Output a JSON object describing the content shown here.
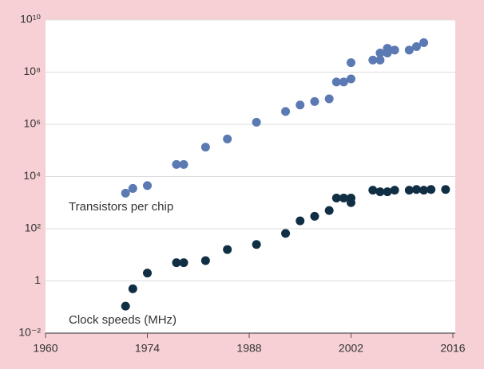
{
  "chart_data": {
    "type": "scatter",
    "log_y": true,
    "grid": true,
    "xlim": [
      1960,
      2016
    ],
    "xticks": [
      1960,
      1974,
      1988,
      2002,
      2016
    ],
    "ylim": [
      0.01,
      10000000000
    ],
    "yticks": [
      {
        "value": 0.01,
        "label": "10⁻²"
      },
      1,
      {
        "value": 100,
        "label": "10²"
      },
      {
        "value": 10000,
        "label": "10⁴"
      },
      {
        "value": 1000000,
        "label": "10⁶"
      },
      {
        "value": 100000000,
        "label": "10⁸"
      },
      {
        "value": 10000000000,
        "label": "10¹⁰"
      }
    ],
    "series": [
      {
        "name": "Transistors per chip",
        "color": "#5b79b2",
        "x": [
          1971,
          1972,
          1974,
          1978,
          1979,
          1982,
          1985,
          1989,
          1993,
          1995,
          1997,
          1999,
          2000,
          2001,
          2002,
          2002,
          2005,
          2006,
          2006,
          2007,
          2007,
          2008,
          2010,
          2011,
          2012
        ],
        "values": [
          2300,
          3500,
          4500,
          29000,
          29000,
          134000,
          275000,
          1200000,
          3100000,
          5500000,
          7500000,
          9500000,
          42000000,
          42000000,
          55000000,
          230000000,
          290000000,
          540000000,
          290000000,
          820000000,
          540000000,
          700000000,
          700000000,
          950000000,
          1350000000
        ]
      },
      {
        "name": "Clock speeds (MHz)",
        "color": "#112f44",
        "x": [
          1971,
          1972,
          1974,
          1978,
          1979,
          1982,
          1985,
          1989,
          1993,
          1995,
          1997,
          1999,
          2000,
          2001,
          2002,
          2002,
          2005,
          2006,
          2007,
          2008,
          2010,
          2011,
          2012,
          2013,
          2015
        ],
        "values": [
          0.108,
          0.5,
          2,
          5,
          5,
          6,
          16,
          25,
          66,
          200,
          300,
          500,
          1500,
          1500,
          1500,
          1000,
          3000,
          2600,
          2600,
          3000,
          3000,
          3200,
          3000,
          3200,
          3200
        ]
      }
    ]
  }
}
